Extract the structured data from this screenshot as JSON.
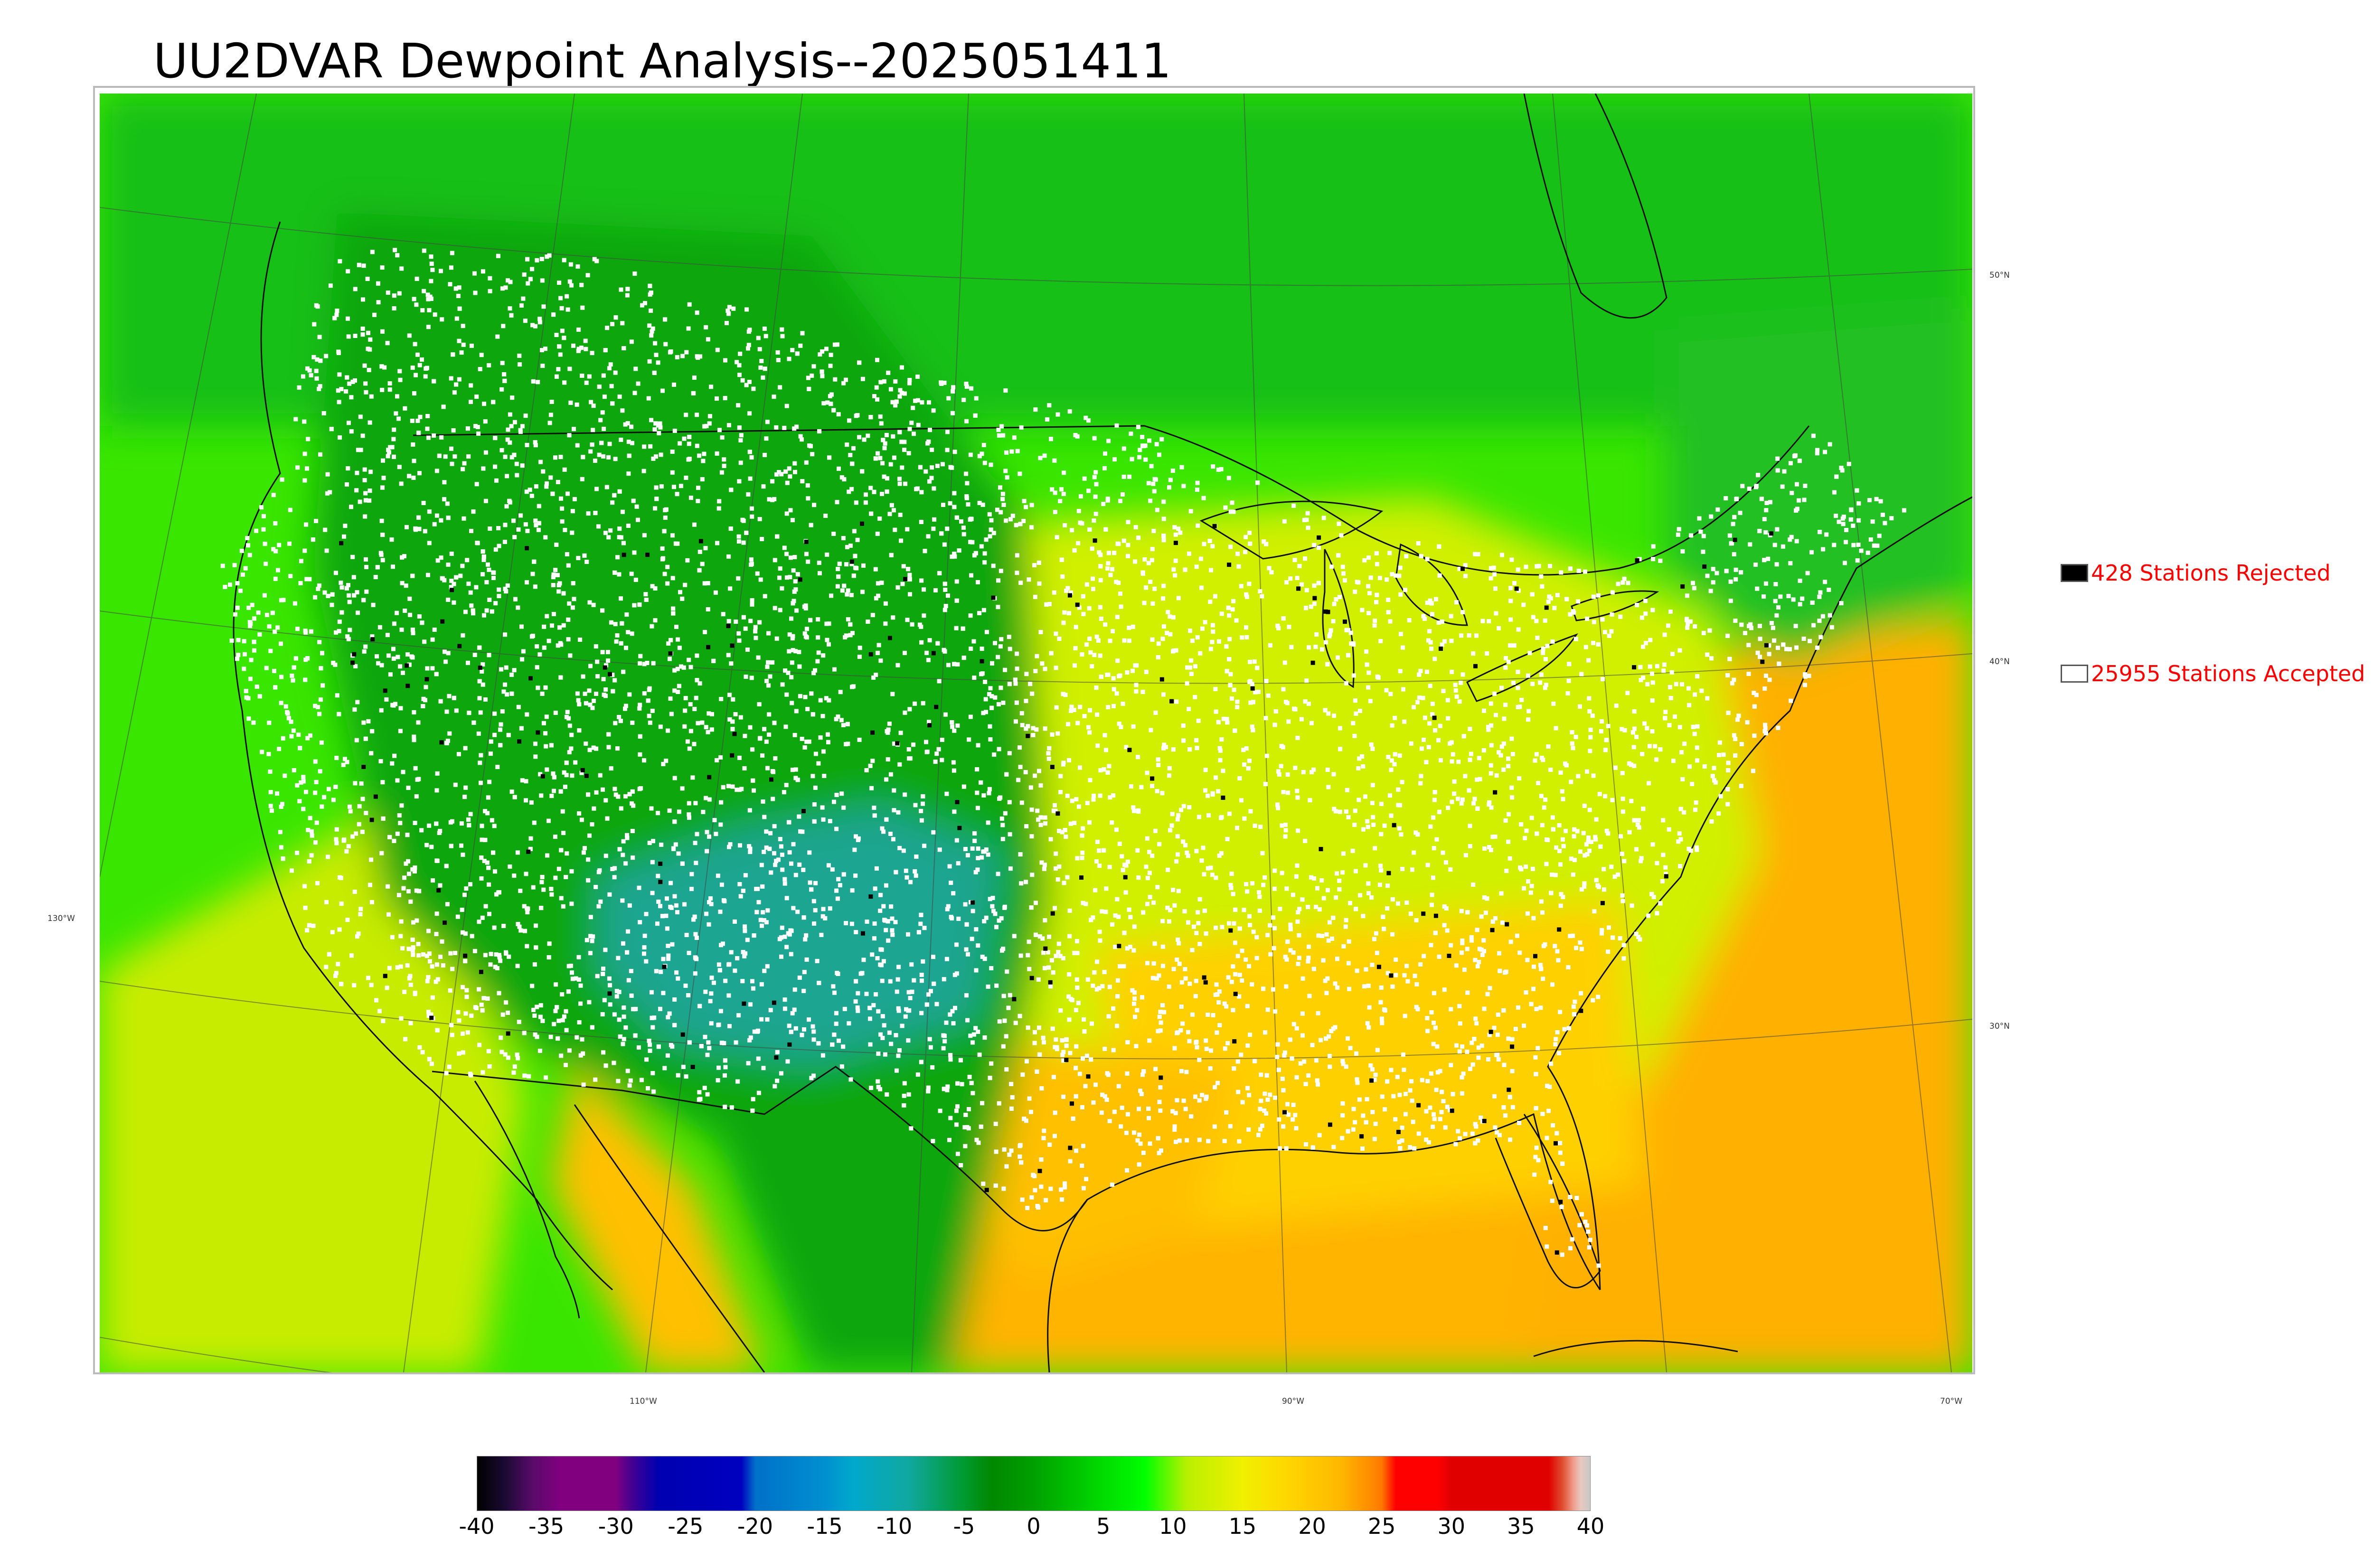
{
  "title": "UU2DVAR Dewpoint Analysis--2025051411",
  "map": {
    "longitude_labels": [
      "110°W",
      "90°W",
      "70°W"
    ],
    "latitude_labels": [
      "50°N",
      "40°N",
      "30°N"
    ],
    "left_edge_label": "130°W",
    "colors": {
      "ocean_west": "#39e600",
      "mountain_dark": "#08a808",
      "basin_teal": "#1aa58f",
      "plains_yellow": "#c6f000",
      "gulf_orange": "#ffbb00",
      "atlantic_orange": "#ffb000",
      "station_accepted": "#ffffff",
      "station_rejected": "#000000"
    }
  },
  "legend": {
    "rejected": {
      "label": "428 Stations Rejected",
      "count": 428,
      "swatch": "#000000"
    },
    "accepted": {
      "label": "25955 Stations Accepted",
      "count": 25955,
      "swatch": "#ffffff"
    }
  },
  "colorbar": {
    "min": -40,
    "max": 40,
    "ticks": [
      "-40",
      "-35",
      "-30",
      "-25",
      "-20",
      "-15",
      "-10",
      "-5",
      "0",
      "5",
      "10",
      "15",
      "20",
      "25",
      "30",
      "35",
      "40"
    ],
    "stops": [
      {
        "v": -40,
        "c": "#000000"
      },
      {
        "v": -38,
        "c": "#1a0a33"
      },
      {
        "v": -36,
        "c": "#5a0a6a"
      },
      {
        "v": -34,
        "c": "#800080"
      },
      {
        "v": -30,
        "c": "#800080"
      },
      {
        "v": -29,
        "c": "#4b0090"
      },
      {
        "v": -27,
        "c": "#0000b0"
      },
      {
        "v": -21,
        "c": "#0000c0"
      },
      {
        "v": -20,
        "c": "#0070c8"
      },
      {
        "v": -15,
        "c": "#0090d0"
      },
      {
        "v": -13,
        "c": "#00a8cc"
      },
      {
        "v": -9,
        "c": "#10a8a0"
      },
      {
        "v": -5,
        "c": "#009a30"
      },
      {
        "v": -3,
        "c": "#008800"
      },
      {
        "v": 0,
        "c": "#00a000"
      },
      {
        "v": 4,
        "c": "#00d000"
      },
      {
        "v": 8,
        "c": "#00ff00"
      },
      {
        "v": 11,
        "c": "#b8f000"
      },
      {
        "v": 15,
        "c": "#f0f000"
      },
      {
        "v": 18,
        "c": "#ffd800"
      },
      {
        "v": 22,
        "c": "#ffb800"
      },
      {
        "v": 24,
        "c": "#ff9000"
      },
      {
        "v": 25,
        "c": "#ff7800"
      },
      {
        "v": 26,
        "c": "#ff0000"
      },
      {
        "v": 29,
        "c": "#ff0000"
      },
      {
        "v": 30,
        "c": "#e00000"
      },
      {
        "v": 37,
        "c": "#e00000"
      },
      {
        "v": 38,
        "c": "#e05030"
      },
      {
        "v": 38.8,
        "c": "#f0a090"
      },
      {
        "v": 39.3,
        "c": "#e8c8c0"
      },
      {
        "v": 40,
        "c": "#c8c8c8"
      }
    ]
  }
}
